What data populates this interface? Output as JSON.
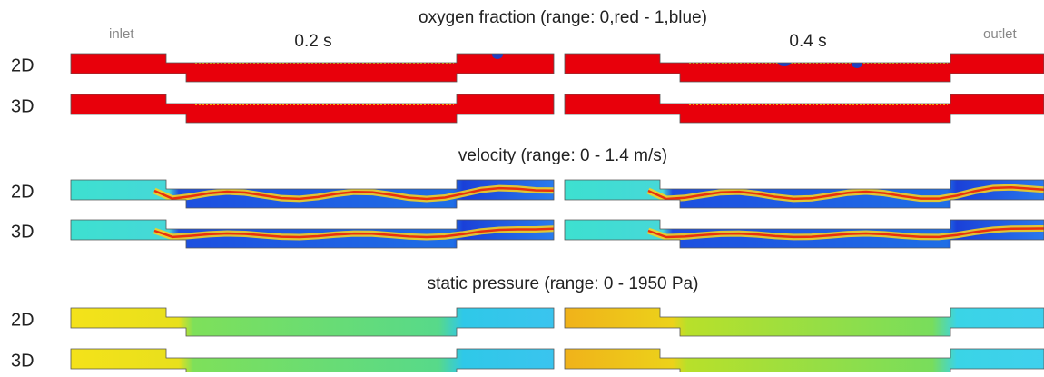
{
  "labels": {
    "inlet": "inlet",
    "outlet": "outlet"
  },
  "times": [
    "0.2 s",
    "0.4 s"
  ],
  "panels": [
    {
      "title": "oxygen fraction (range: 0,red - 1,blue)",
      "rows": [
        "2D",
        "3D"
      ]
    },
    {
      "title": "velocity (range: 0 - 1.4 m/s)",
      "rows": [
        "2D",
        "3D"
      ]
    },
    {
      "title": "static pressure (range: 0 - 1950 Pa)",
      "rows": [
        "2D",
        "3D"
      ]
    }
  ]
}
